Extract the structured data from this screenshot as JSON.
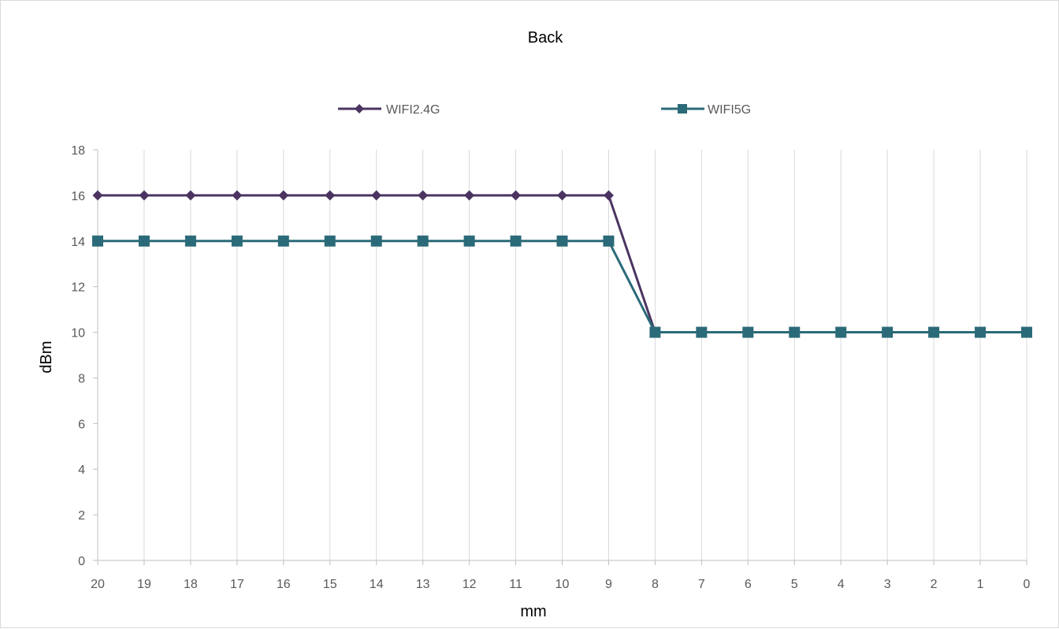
{
  "chart_data": {
    "type": "line",
    "title": "Back",
    "xlabel": "mm",
    "ylabel": "dBm",
    "categories": [
      "20",
      "19",
      "18",
      "17",
      "16",
      "15",
      "14",
      "13",
      "12",
      "11",
      "10",
      "9",
      "8",
      "7",
      "6",
      "5",
      "4",
      "3",
      "2",
      "1",
      "0"
    ],
    "ylim": [
      0,
      18
    ],
    "yticks": [
      "0",
      "2",
      "4",
      "6",
      "8",
      "10",
      "12",
      "14",
      "16",
      "18"
    ],
    "grid": "vertical",
    "legend_position": "top",
    "series": [
      {
        "name": "WIFI2.4G",
        "marker": "diamond",
        "color": "#4b3461",
        "values": [
          16,
          16,
          16,
          16,
          16,
          16,
          16,
          16,
          16,
          16,
          16,
          16,
          10,
          10,
          10,
          10,
          10,
          10,
          10,
          10,
          10
        ]
      },
      {
        "name": "WIFI5G",
        "marker": "square",
        "color": "#2b6a78",
        "values": [
          14,
          14,
          14,
          14,
          14,
          14,
          14,
          14,
          14,
          14,
          14,
          14,
          10,
          10,
          10,
          10,
          10,
          10,
          10,
          10,
          10
        ]
      }
    ]
  }
}
